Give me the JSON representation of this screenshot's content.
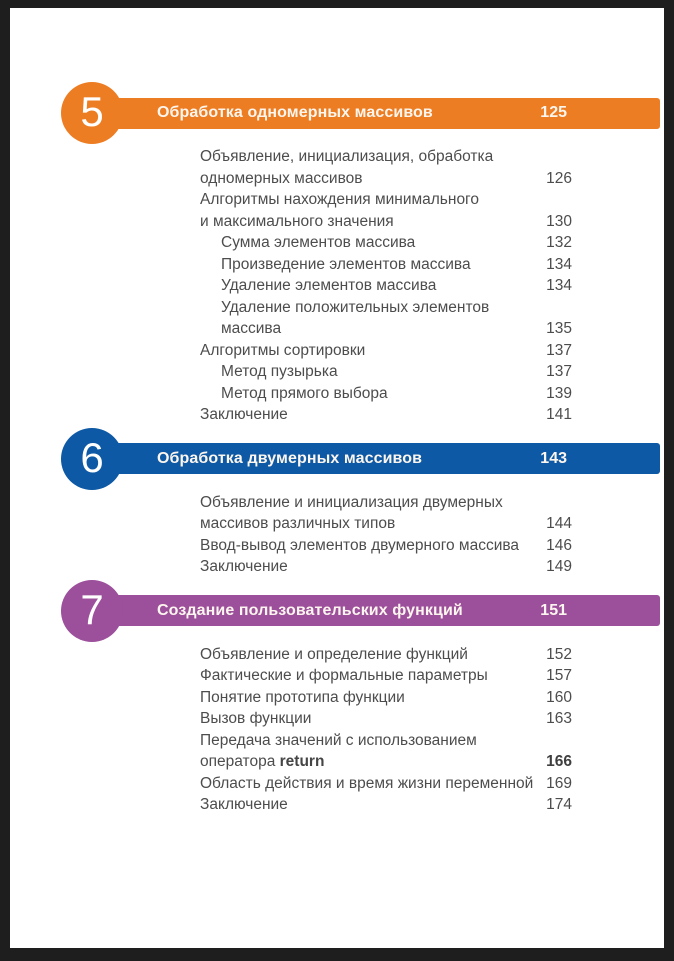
{
  "page": {
    "frame_color": "#1e1e1e",
    "paper_color": "#ffffff",
    "text_color": "#4d4d4d"
  },
  "chapters": [
    {
      "number": "5",
      "title": "Обработка одномерных массивов",
      "page": "125",
      "color": "#ed7d23",
      "entries": [
        {
          "label": "Объявление, инициализация, обработка\nодномерных массивов",
          "page": "126",
          "indent": 0
        },
        {
          "label": "Алгоритмы нахождения минимального\nи максимального значения",
          "page": "130",
          "indent": 0
        },
        {
          "label": "Сумма элементов массива",
          "page": "132",
          "indent": 1
        },
        {
          "label": "Произведение элементов массива",
          "page": "134",
          "indent": 1
        },
        {
          "label": "Удаление элементов массива",
          "page": "134",
          "indent": 1
        },
        {
          "label": "Удаление положительных элементов\nмассива",
          "page": "135",
          "indent": 1
        },
        {
          "label": "Алгоритмы сортировки",
          "page": "137",
          "indent": 0
        },
        {
          "label": "Метод пузырька",
          "page": "137",
          "indent": 1
        },
        {
          "label": "Метод прямого выбора",
          "page": "139",
          "indent": 1
        },
        {
          "label": "Заключение",
          "page": "141",
          "indent": 0
        }
      ]
    },
    {
      "number": "6",
      "title": "Обработка двумерных массивов",
      "page": "143",
      "color": "#0d59a5",
      "entries": [
        {
          "label": "Объявление и инициализация двумерных\nмассивов различных типов",
          "page": "144",
          "indent": 0
        },
        {
          "label": "Ввод-вывод элементов двумерного массива",
          "page": "146",
          "indent": 0
        },
        {
          "label": "Заключение",
          "page": "149",
          "indent": 0
        }
      ]
    },
    {
      "number": "7",
      "title": "Создание пользовательских функций",
      "page": "151",
      "color": "#9c4f9b",
      "entries": [
        {
          "label": "Объявление и определение функций",
          "page": "152",
          "indent": 0
        },
        {
          "label": "Фактические и формальные параметры",
          "page": "157",
          "indent": 0
        },
        {
          "label": "Понятие прототипа функции",
          "page": "160",
          "indent": 0
        },
        {
          "label": "Вызов функции",
          "page": "163",
          "indent": 0
        },
        {
          "label": "Передача значений с использованием\nоператора ",
          "code": "return",
          "page": "166",
          "indent": 0,
          "bold_page": true
        },
        {
          "label": "Область действия и время жизни переменной",
          "page": "169",
          "indent": 0
        },
        {
          "label": "Заключение",
          "page": "174",
          "indent": 0
        }
      ]
    }
  ]
}
